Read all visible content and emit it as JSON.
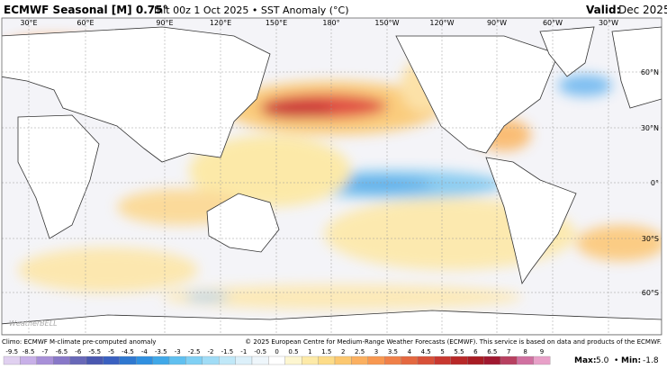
{
  "header": {
    "model": "ECMWF Seasonal [M] 0.75°",
    "init": "Init 00z 1 Oct 2025 • SST Anomaly (°C)",
    "valid_label": "Valid:",
    "valid": "Dec 2025"
  },
  "map": {
    "longitudes": [
      "30°E",
      "60°E",
      "90°E",
      "120°E",
      "150°E",
      "180°",
      "150°W",
      "120°W",
      "90°W",
      "60°W",
      "30°W"
    ],
    "latitudes": [
      "60°N",
      "30°N",
      "0°",
      "30°S",
      "60°S"
    ],
    "logo": "WeatherBELL"
  },
  "footer": {
    "climo": "Climo: ECMWF M-climate pre-computed anomaly",
    "copyright": "© 2025 European Centre for Medium-Range Weather Forecasts (ECMWF). This service is based on data and products of the ECMWF."
  },
  "colorbar": {
    "labels": [
      "-9.5",
      "-8.5",
      "-7",
      "-6.5",
      "-6",
      "-5.5",
      "-5",
      "-4.5",
      "-4",
      "-3.5",
      "-3",
      "-2.5",
      "-2",
      "-1.5",
      "-1",
      "-0.5",
      "0",
      "0.5",
      "1",
      "1.5",
      "2",
      "2.5",
      "3",
      "3.5",
      "4",
      "4.5",
      "5",
      "5.5",
      "6",
      "6.5",
      "7",
      "8",
      "9"
    ],
    "colors": [
      "#e0d0f0",
      "#c8b0e8",
      "#a890d8",
      "#8878c8",
      "#6868b8",
      "#4a58b0",
      "#3a60c0",
      "#2f78d0",
      "#3090e0",
      "#40a8e8",
      "#60c0f0",
      "#80d0f4",
      "#a0dcf6",
      "#c0e8f8",
      "#dcf0fa",
      "#eef6fb",
      "#ffffff",
      "#fdf6d0",
      "#fdeaa8",
      "#fddc88",
      "#fcc870",
      "#fbb060",
      "#f89850",
      "#f08048",
      "#e46840",
      "#d85038",
      "#c83830",
      "#b82828",
      "#a81c24",
      "#a01830",
      "#b84060",
      "#d070a0",
      "#e8a0c8"
    ]
  },
  "stats": {
    "max_label": "Max:",
    "max": "5.0",
    "sep": "•",
    "min_label": "Min:",
    "min": "-1.8"
  }
}
